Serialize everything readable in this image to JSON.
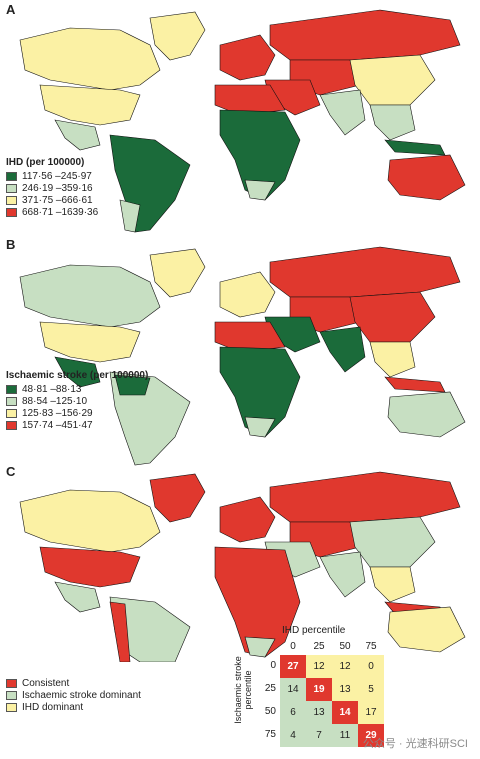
{
  "colors": {
    "green": "#1b6b3a",
    "light_green": "#c7dfc2",
    "yellow": "#fbf1a4",
    "red": "#e0382e",
    "border": "#111111"
  },
  "panel_a": {
    "letter": "A",
    "legend_title": "IHD (per 100000)",
    "legend_items": [
      "117·56 –245·97",
      "246·19 –359·16",
      "371·75 –666·61",
      "668·71 –1639·36"
    ]
  },
  "panel_b": {
    "letter": "B",
    "legend_title": "Ischaemic stroke (per 100000)",
    "legend_items": [
      "48·81 –88·13",
      "88·54 –125·10",
      "125·83 –156·29",
      "157·74 –451·47"
    ]
  },
  "panel_c": {
    "letter": "C",
    "legend_items": [
      "Consistent",
      "Ischaemic stroke dominant",
      "IHD dominant"
    ],
    "matrix": {
      "title": "IHD percentile",
      "ylabel": "Ischaemic stroke percentile",
      "col_labels": [
        "0",
        "25",
        "50",
        "75"
      ],
      "row_labels": [
        "0",
        "25",
        "50",
        "75"
      ],
      "values": [
        [
          "27",
          "12",
          "12",
          "0"
        ],
        [
          "14",
          "19",
          "13",
          "5"
        ],
        [
          "6",
          "13",
          "14",
          "17"
        ],
        [
          "4",
          "7",
          "11",
          "29"
        ]
      ]
    }
  },
  "watermark": "公众号 · 光速科研SCI"
}
